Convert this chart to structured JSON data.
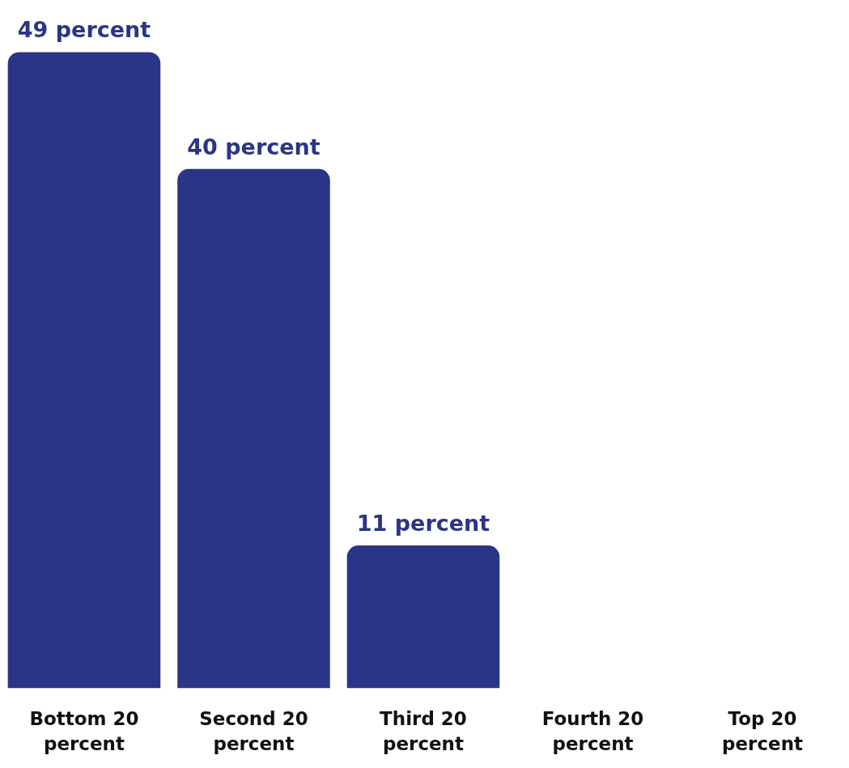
{
  "chart_data": {
    "type": "bar",
    "categories": [
      "Bottom 20 percent",
      "Second 20 percent",
      "Third 20 percent",
      "Fourth 20 percent",
      "Top 20 percent"
    ],
    "values": [
      49,
      40,
      11,
      0,
      0
    ],
    "value_labels": [
      "49 percent",
      "40 percent",
      "11 percent",
      null,
      null
    ],
    "color": "#2a3587"
  }
}
